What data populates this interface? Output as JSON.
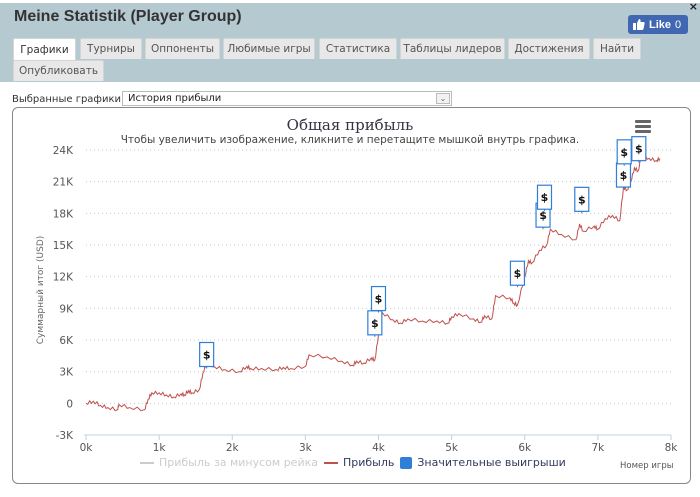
{
  "window": {
    "title": "Meine Statistik (Player Group)",
    "close_label": "×",
    "like": {
      "label": "Like",
      "count": "0",
      "color": "#4267b2"
    }
  },
  "tabs": [
    {
      "label": "Графики",
      "active": true
    },
    {
      "label": "Турниры"
    },
    {
      "label": "Оппоненты"
    },
    {
      "label": "Любимые игры"
    },
    {
      "label": "Статистика"
    },
    {
      "label": "Таблицы лидеров"
    },
    {
      "label": "Достижения"
    },
    {
      "label": "Найти"
    },
    {
      "label": "Опубликовать"
    }
  ],
  "selector": {
    "label": "Выбранные графики:",
    "value": "История прибыли",
    "arrow": "⌄"
  },
  "chart_data": {
    "type": "line",
    "title": "Общая прибыль",
    "subtitle": "Чтобы увеличить изображение, кликните и перетащите мышкой внутрь графика.",
    "xlabel": "Номер игры",
    "ylabel": "Суммарный итог (USD)",
    "xlim": [
      0,
      8000
    ],
    "ylim": [
      -3000,
      24000
    ],
    "x_ticks": [
      "0k",
      "1k",
      "2k",
      "3k",
      "4k",
      "5k",
      "6k",
      "7k",
      "8k"
    ],
    "y_ticks": [
      "24K",
      "21K",
      "18K",
      "15K",
      "12K",
      "9K",
      "6K",
      "3K",
      "0",
      "-3K"
    ],
    "grid": "horizontal dotted",
    "legend_position": "bottom",
    "legend": [
      {
        "name": "Прибыль за минусом рейка",
        "color": "#cccccc",
        "hidden": true
      },
      {
        "name": "Прибыль",
        "color": "#c0504d"
      },
      {
        "name": "Значительные выигрыши",
        "color": "#2f7ed8"
      }
    ],
    "series": [
      {
        "name": "Прибыль",
        "x": [
          0,
          100,
          200,
          300,
          430,
          450,
          600,
          800,
          850,
          900,
          1000,
          1100,
          1200,
          1300,
          1350,
          1400,
          1450,
          1550,
          1600,
          1650,
          1700,
          1750,
          1900,
          2100,
          2200,
          2250,
          2400,
          2600,
          2700,
          2800,
          3000,
          3050,
          3300,
          3500,
          3650,
          3700,
          3800,
          3900,
          3950,
          4000,
          4050,
          4200,
          4300,
          4400,
          4600,
          4800,
          4950,
          5000,
          5100,
          5300,
          5400,
          5450,
          5550,
          5600,
          5800,
          5850,
          5900,
          6000,
          6050,
          6100,
          6200,
          6300,
          6350,
          6500,
          6700,
          6750,
          6800,
          6950,
          7000,
          7100,
          7200,
          7300,
          7350,
          7400,
          7450,
          7500,
          7550,
          7600,
          7700,
          7800,
          7850
        ],
        "values": [
          0,
          200,
          -200,
          -400,
          -600,
          -100,
          -400,
          -600,
          400,
          1000,
          1000,
          800,
          600,
          900,
          800,
          1200,
          1000,
          1300,
          2900,
          3800,
          3800,
          3500,
          3200,
          3000,
          3500,
          3300,
          3300,
          3200,
          3400,
          3300,
          3500,
          4600,
          4400,
          4000,
          3600,
          4000,
          3800,
          4300,
          4100,
          6500,
          8600,
          7900,
          7600,
          8000,
          7800,
          7800,
          7600,
          8200,
          8500,
          8000,
          7700,
          8300,
          8000,
          10200,
          10000,
          9500,
          9300,
          12000,
          13500,
          13300,
          14500,
          15000,
          16500,
          16000,
          15500,
          17000,
          16300,
          16800,
          16500,
          17500,
          17800,
          17300,
          20500,
          20200,
          21000,
          22300,
          22000,
          23500,
          23200,
          23000,
          23200
        ]
      }
    ],
    "big_wins": [
      {
        "x": 1650,
        "y": 3300
      },
      {
        "x": 3950,
        "y": 6300
      },
      {
        "x": 4000,
        "y": 8600
      },
      {
        "x": 5900,
        "y": 11000
      },
      {
        "x": 6250,
        "y": 16500
      },
      {
        "x": 6270,
        "y": 18200
      },
      {
        "x": 6780,
        "y": 18000
      },
      {
        "x": 7350,
        "y": 20300
      },
      {
        "x": 7360,
        "y": 22500
      },
      {
        "x": 7560,
        "y": 22800
      }
    ]
  }
}
